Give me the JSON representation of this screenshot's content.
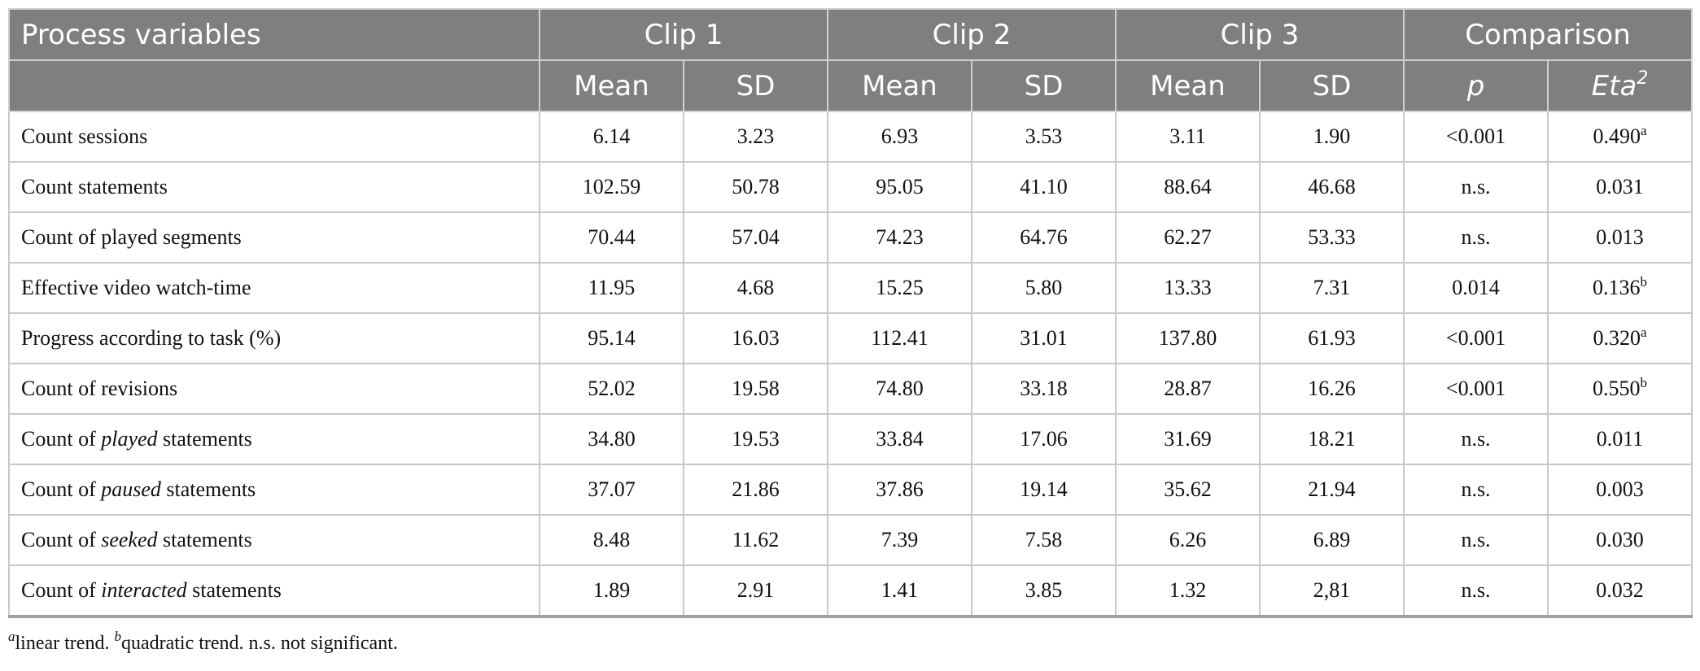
{
  "header": {
    "row1": {
      "variable": "Process variables",
      "groups": [
        "Clip 1",
        "Clip 2",
        "Clip 3",
        "Comparison"
      ]
    },
    "row2": {
      "mean": "Mean",
      "sd": "SD",
      "p": "p",
      "eta": "Eta",
      "eta_sup": "2"
    }
  },
  "rows": [
    {
      "pre": "Count sessions",
      "em": "",
      "post": "",
      "c1m": "6.14",
      "c1s": "3.23",
      "c2m": "6.93",
      "c2s": "3.53",
      "c3m": "3.11",
      "c3s": "1.90",
      "p": "<0.001",
      "eta": "0.490",
      "sup": "a"
    },
    {
      "pre": "Count statements",
      "em": "",
      "post": "",
      "c1m": "102.59",
      "c1s": "50.78",
      "c2m": "95.05",
      "c2s": "41.10",
      "c3m": "88.64",
      "c3s": "46.68",
      "p": "n.s.",
      "eta": "0.031",
      "sup": ""
    },
    {
      "pre": "Count of played segments",
      "em": "",
      "post": "",
      "c1m": "70.44",
      "c1s": "57.04",
      "c2m": "74.23",
      "c2s": "64.76",
      "c3m": "62.27",
      "c3s": "53.33",
      "p": "n.s.",
      "eta": "0.013",
      "sup": ""
    },
    {
      "pre": "Effective video watch-time",
      "em": "",
      "post": "",
      "c1m": "11.95",
      "c1s": "4.68",
      "c2m": "15.25",
      "c2s": "5.80",
      "c3m": "13.33",
      "c3s": "7.31",
      "p": "0.014",
      "eta": "0.136",
      "sup": "b"
    },
    {
      "pre": "Progress according to task (%)",
      "em": "",
      "post": "",
      "c1m": "95.14",
      "c1s": "16.03",
      "c2m": "112.41",
      "c2s": "31.01",
      "c3m": "137.80",
      "c3s": "61.93",
      "p": "<0.001",
      "eta": "0.320",
      "sup": "a"
    },
    {
      "pre": "Count of revisions",
      "em": "",
      "post": "",
      "c1m": "52.02",
      "c1s": "19.58",
      "c2m": "74.80",
      "c2s": "33.18",
      "c3m": "28.87",
      "c3s": "16.26",
      "p": "<0.001",
      "eta": "0.550",
      "sup": "b"
    },
    {
      "pre": "Count of ",
      "em": "played",
      "post": " statements",
      "c1m": "34.80",
      "c1s": "19.53",
      "c2m": "33.84",
      "c2s": "17.06",
      "c3m": "31.69",
      "c3s": "18.21",
      "p": "n.s.",
      "eta": "0.011",
      "sup": ""
    },
    {
      "pre": "Count of ",
      "em": "paused",
      "post": " statements",
      "c1m": "37.07",
      "c1s": "21.86",
      "c2m": "37.86",
      "c2s": "19.14",
      "c3m": "35.62",
      "c3s": "21.94",
      "p": "n.s.",
      "eta": "0.003",
      "sup": ""
    },
    {
      "pre": "Count of ",
      "em": "seeked",
      "post": " statements",
      "c1m": "8.48",
      "c1s": "11.62",
      "c2m": "7.39",
      "c2s": "7.58",
      "c3m": "6.26",
      "c3s": "6.89",
      "p": "n.s.",
      "eta": "0.030",
      "sup": ""
    },
    {
      "pre": "Count of ",
      "em": "interacted",
      "post": " statements",
      "c1m": "1.89",
      "c1s": "2.91",
      "c2m": "1.41",
      "c2s": "3.85",
      "c3m": "1.32",
      "c3s": "2,81",
      "p": "n.s.",
      "eta": "0.032",
      "sup": ""
    }
  ],
  "footnote": {
    "a_mark": "a",
    "a_text": "linear trend. ",
    "b_mark": "b",
    "b_text": "quadratic trend. n.s. not significant."
  }
}
